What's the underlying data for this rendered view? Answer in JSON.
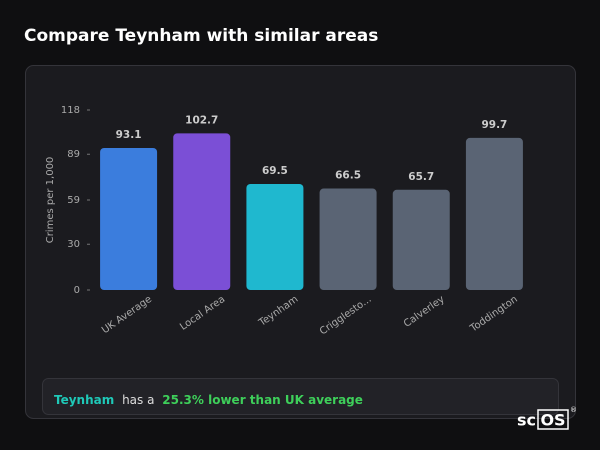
{
  "chart_data": {
    "type": "bar",
    "title": "Compare Teynham with similar areas",
    "y_label": "Crimes per 1,000",
    "categories": [
      "UK Average",
      "Local Area",
      "Teynham",
      "Crigglesto...",
      "Calverley",
      "Toddington"
    ],
    "values": [
      93.1,
      102.7,
      69.5,
      66.5,
      65.7,
      99.7
    ],
    "colors": [
      "#3b7ddd",
      "#7b4fd6",
      "#1fb8cf",
      "#5a6474",
      "#5a6474",
      "#5a6474"
    ],
    "ylim": [
      0,
      118
    ],
    "yticks": [
      0,
      30,
      59,
      89,
      118
    ],
    "grid": false,
    "note": {
      "highlight": "Teynham",
      "text": "has a",
      "emphasis": "25.3% lower than UK average"
    }
  },
  "logo": {
    "left": "sc",
    "boxed": "OS",
    "mark": "®"
  }
}
